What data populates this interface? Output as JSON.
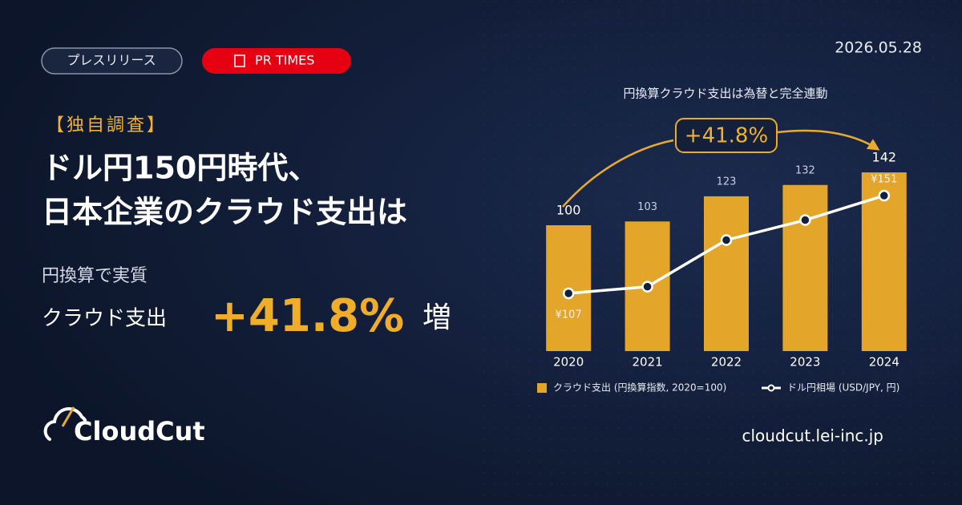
{
  "header": {
    "tag": "プレスリリース",
    "source": "PR TIMES",
    "date": "2026.05.28"
  },
  "headline": {
    "kicker": "【独自調査】",
    "lines": [
      "ドル円150円時代、",
      "日本企業のクラウド支出は"
    ]
  },
  "highlight": {
    "lead": "円換算で実質",
    "subject": "クラウド支出",
    "figure": "+41.8%",
    "suffix": "増"
  },
  "footer": {
    "brand": "CloudCut",
    "url": "cloudcut.lei-inc.jp"
  },
  "chart_data": {
    "type": "bar",
    "title": "円換算クラウド支出は為替と完全連動",
    "annotation": "+41.8%",
    "categories": [
      "2020",
      "2021",
      "2022",
      "2023",
      "2024"
    ],
    "series": [
      {
        "name": "クラウド支出 (円換算指数, 2020=100)",
        "color": "#e3a52a",
        "values": [
          100,
          103,
          123,
          132,
          142
        ]
      },
      {
        "name": "ドル円相場 (USD/JPY, 円)",
        "type": "line",
        "axis": "y2",
        "color": "#ffffff",
        "values": [
          107,
          110,
          131,
          140,
          151
        ],
        "value_labels": [
          "¥107",
          null,
          null,
          null,
          "¥151"
        ]
      }
    ],
    "ylim": [
      0,
      150
    ],
    "y2lim": [
      81,
      166
    ]
  }
}
